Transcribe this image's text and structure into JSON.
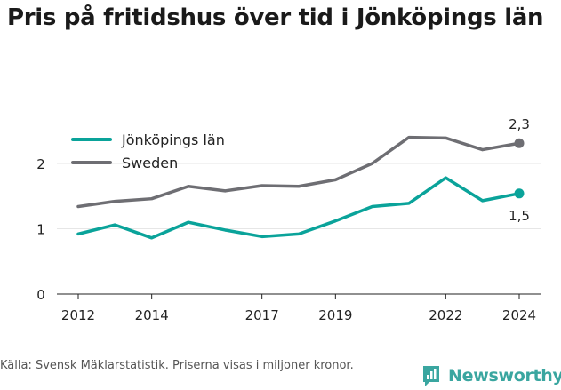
{
  "title": "Pris på fritidshus över tid i Jönköpings län",
  "source": "Källa: Svensk Mäklarstatistik. Priserna visas i miljoner kronor.",
  "brand": {
    "name": "Newsworthy",
    "icon": "newsworthy-logo-icon",
    "color": "#3aa6a0"
  },
  "chart_data": {
    "type": "line",
    "x": [
      2012,
      2013,
      2014,
      2015,
      2016,
      2017,
      2018,
      2019,
      2020,
      2021,
      2022,
      2023,
      2024
    ],
    "x_ticks": [
      2012,
      2014,
      2017,
      2019,
      2022,
      2024
    ],
    "y_ticks": [
      0,
      1,
      2
    ],
    "ylim": [
      0,
      2.5
    ],
    "grid": true,
    "legend": "top-left",
    "series": [
      {
        "name": "Jönköpings län",
        "color": "#0aa39a",
        "values": [
          0.92,
          1.06,
          0.86,
          1.1,
          0.98,
          0.88,
          0.92,
          1.12,
          1.34,
          1.39,
          1.78,
          1.43,
          1.54
        ],
        "end_label": "1,5"
      },
      {
        "name": "Sweden",
        "color": "#6e6e73",
        "values": [
          1.34,
          1.42,
          1.46,
          1.65,
          1.58,
          1.66,
          1.65,
          1.75,
          2.0,
          2.4,
          2.39,
          2.21,
          2.31
        ],
        "end_label": "2,3"
      }
    ]
  }
}
